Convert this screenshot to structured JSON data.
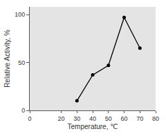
{
  "chart_data": {
    "type": "line",
    "x": [
      30,
      40,
      50,
      60,
      70
    ],
    "values": [
      10,
      37,
      47,
      97,
      65
    ],
    "color": "#000000",
    "marker": "circle",
    "line_style": "solid",
    "x_label": "Temperature, ℃",
    "y_label": "Relative Activity, %",
    "xlim": [
      0,
      80
    ],
    "xticks": [
      0,
      20,
      30,
      40,
      50,
      60,
      70,
      80
    ],
    "ylim": [
      0,
      108
    ],
    "yticks": [
      0,
      50,
      100
    ],
    "grid": false
  }
}
